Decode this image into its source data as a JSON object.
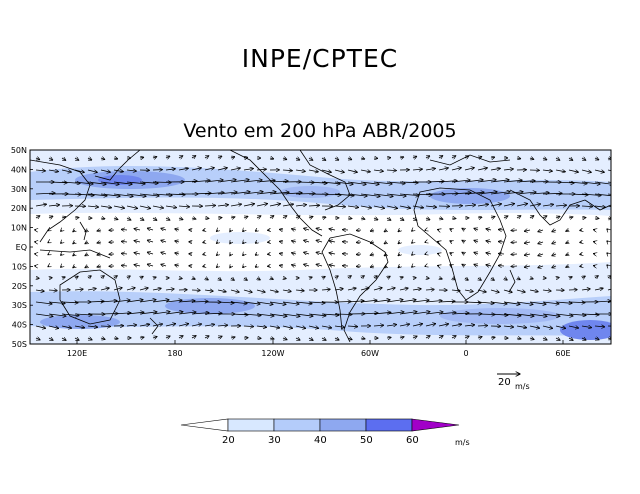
{
  "header": {
    "org": "INPE/CPTEC",
    "title": "Vento em 200 hPa ABR/2005"
  },
  "map": {
    "lat_labels": [
      "50N",
      "40N",
      "30N",
      "20N",
      "10N",
      "EQ",
      "10S",
      "20S",
      "30S",
      "40S",
      "50S"
    ],
    "lon_labels": [
      "120E",
      "180",
      "120W",
      "60W",
      "0",
      "60E"
    ],
    "reference_vector": {
      "value": "20",
      "unit": "m/s"
    }
  },
  "legend": {
    "unit": "m/s",
    "thresholds": [
      "20",
      "30",
      "40",
      "50",
      "60"
    ],
    "colors": [
      "#ffffff",
      "#d8e8ff",
      "#b4ccfa",
      "#8ea8f0",
      "#5c6ef0",
      "#a100c8"
    ]
  }
}
